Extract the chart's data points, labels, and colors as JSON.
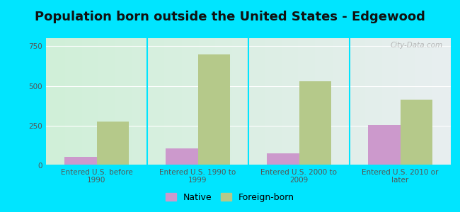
{
  "title": "Population born outside the United States - Edgewood",
  "categories": [
    "Entered U.S. before\n1990",
    "Entered U.S. 1990 to\n1999",
    "Entered U.S. 2000 to\n2009",
    "Entered U.S. 2010 or\nlater"
  ],
  "native_values": [
    55,
    105,
    75,
    252
  ],
  "foreign_born_values": [
    275,
    700,
    530,
    415
  ],
  "native_color": "#cc99cc",
  "foreign_born_color": "#b5c98a",
  "background_outer": "#00e5ff",
  "background_inner_left": "#d0f0d8",
  "background_inner_right": "#e8eef0",
  "ylim": [
    0,
    800
  ],
  "yticks": [
    0,
    250,
    500,
    750
  ],
  "bar_width": 0.32,
  "title_fontsize": 13,
  "tick_fontsize": 7.5,
  "legend_labels": [
    "Native",
    "Foreign-born"
  ],
  "watermark": "City-Data.com"
}
